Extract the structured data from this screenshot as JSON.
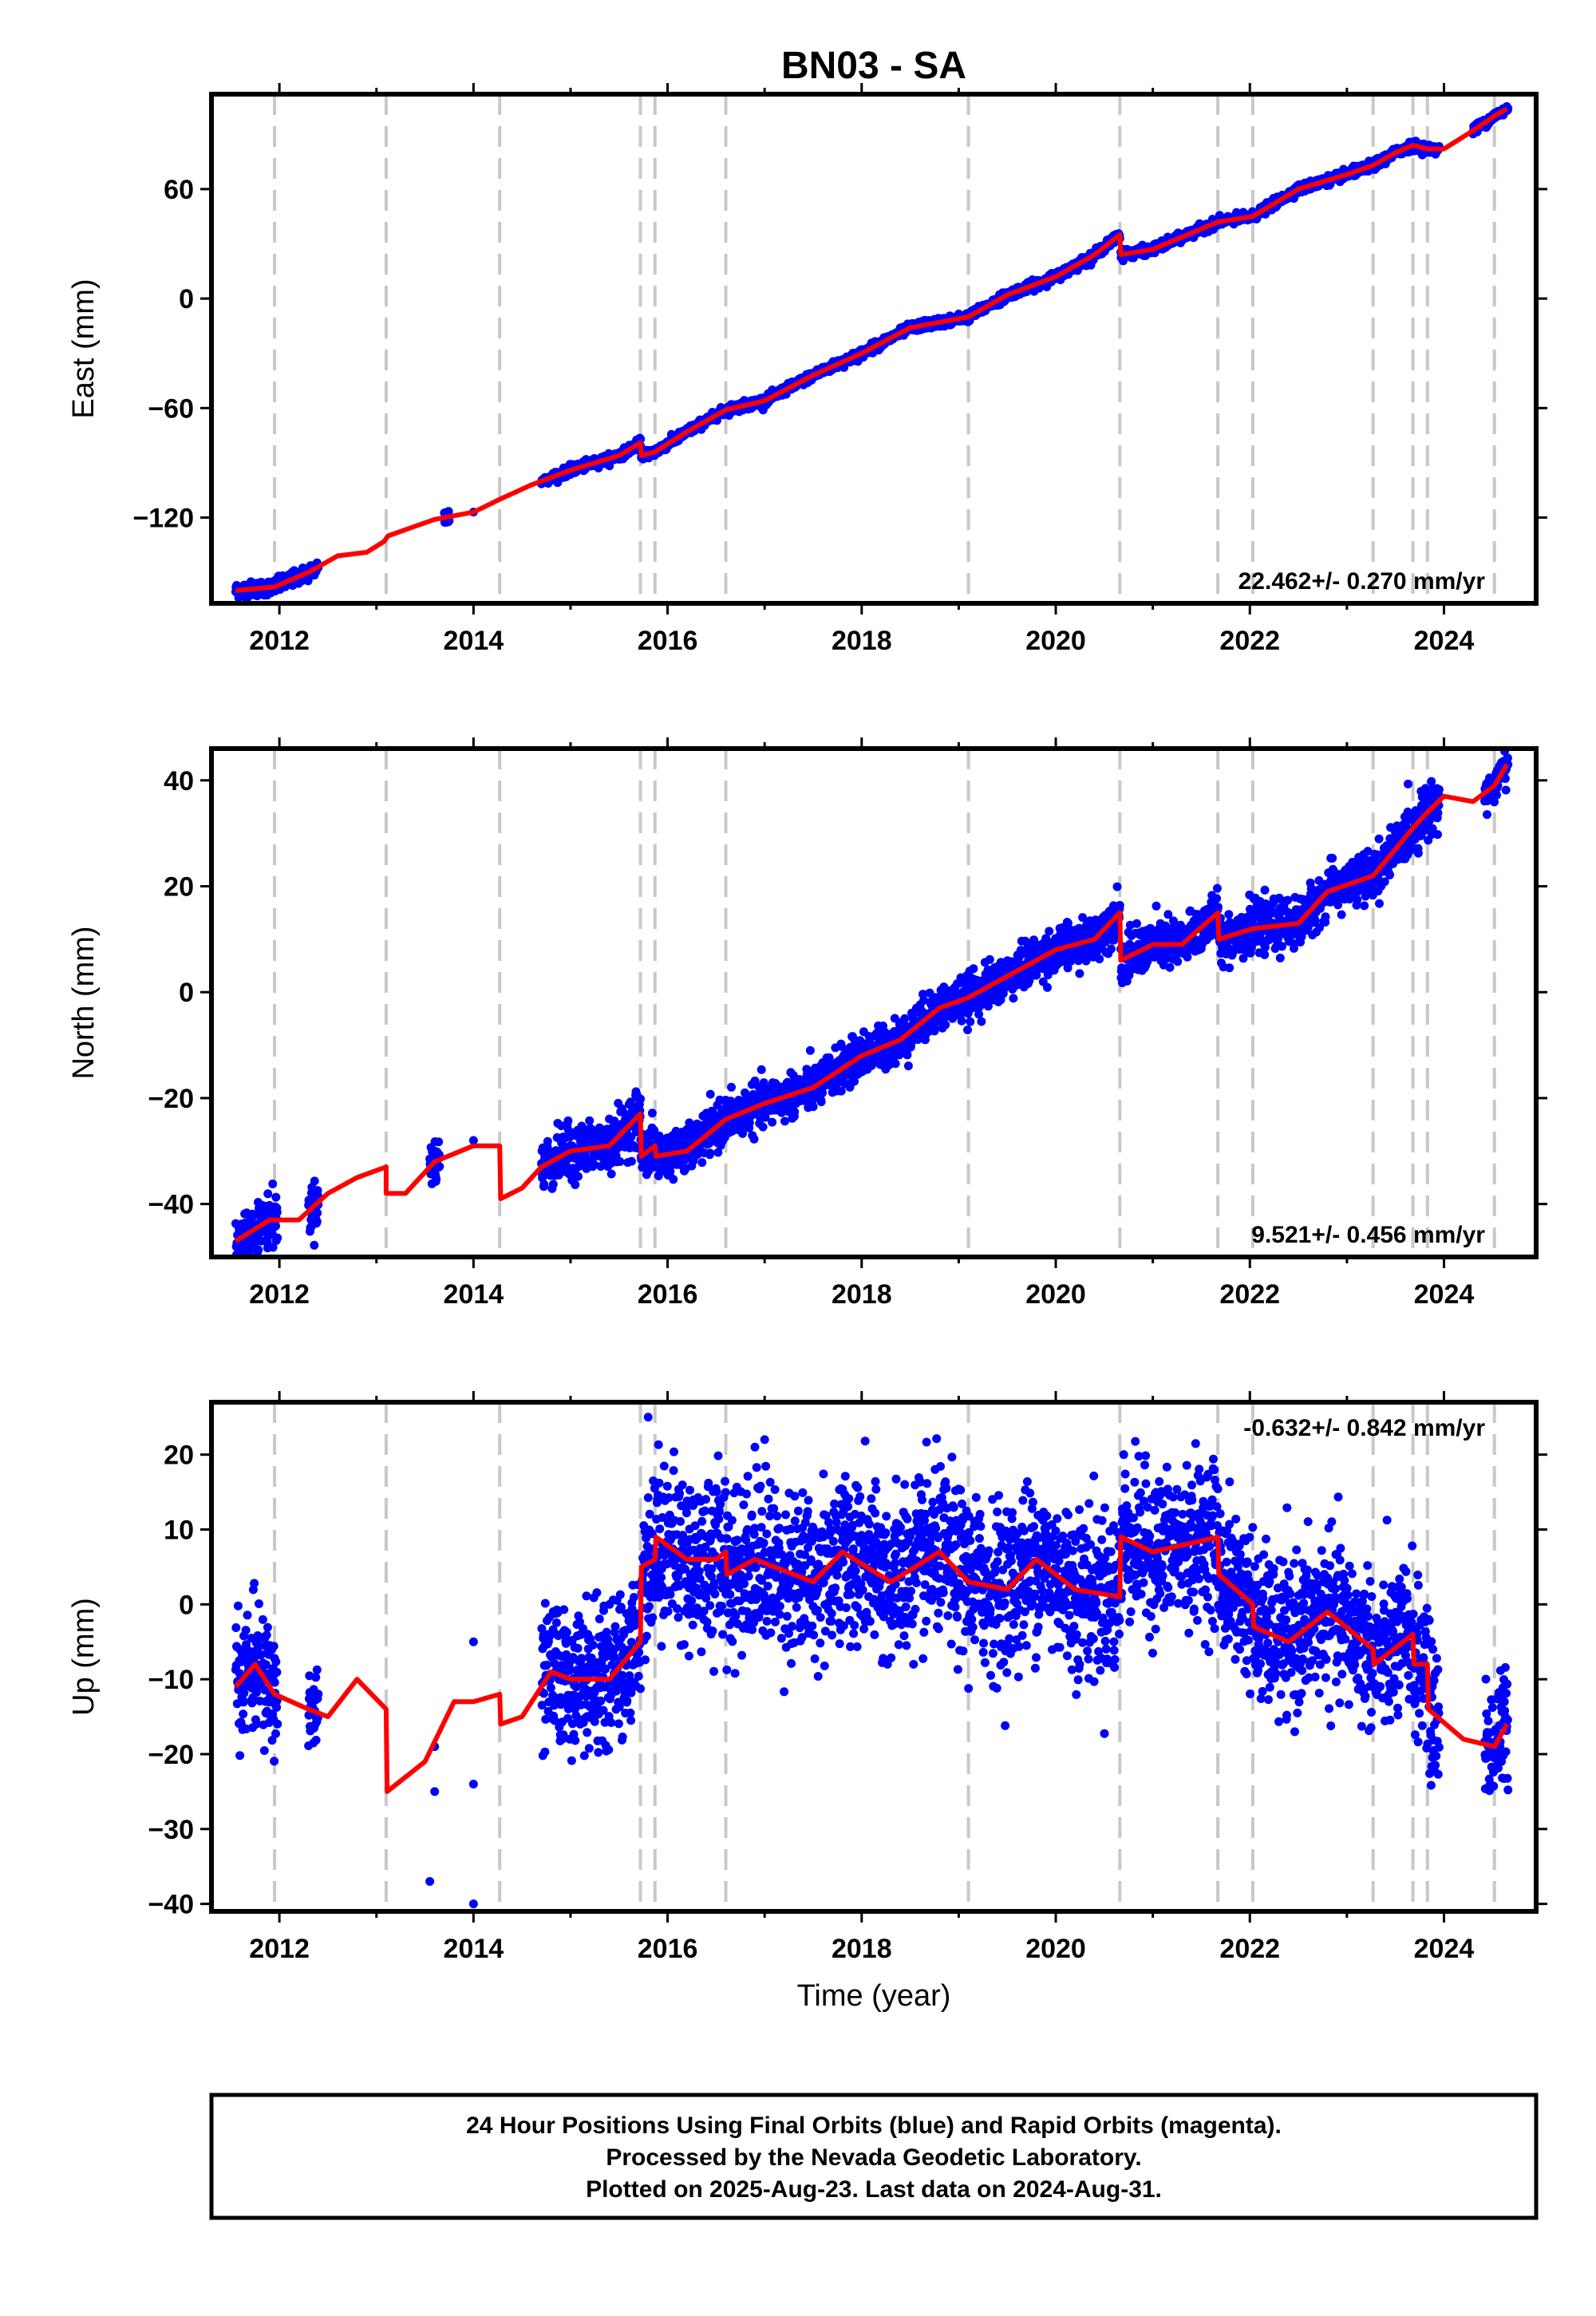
{
  "title": "BN03 - SA",
  "xlabel": "Time (year)",
  "footer": {
    "line1": "24 Hour Positions Using Final Orbits (blue) and Rapid Orbits (magenta).",
    "line2": "Processed by the Nevada Geodetic Laboratory.",
    "line3": "Plotted on 2025-Aug-23. Last data on 2024-Aug-31."
  },
  "colors": {
    "data": "#0000ff",
    "model": "#ff0000",
    "event": "#c8c8c8"
  },
  "chart_data": [
    {
      "type": "scatter",
      "name": "east",
      "ylabel": "East (mm)",
      "rate": "22.462+/- 0.270 mm/yr",
      "xlim": [
        2011.3,
        2024.95
      ],
      "ylim": [
        -167,
        112
      ],
      "yticks": [
        -120,
        -60,
        0,
        60
      ],
      "xticks": [
        2012,
        2014,
        2016,
        2018,
        2020,
        2022,
        2024
      ],
      "events": [
        2011.95,
        2013.1,
        2014.27,
        2015.72,
        2015.87,
        2016.6,
        2019.1,
        2020.66,
        2021.67,
        2022.03,
        2023.27,
        2023.68,
        2023.83,
        2024.52
      ],
      "model": [
        [
          2011.55,
          -160
        ],
        [
          2011.95,
          -158
        ],
        [
          2012.3,
          -150
        ],
        [
          2012.6,
          -141
        ],
        [
          2012.9,
          -139
        ],
        [
          2013.08,
          -133
        ],
        [
          2013.12,
          -130
        ],
        [
          2013.6,
          -121
        ],
        [
          2014.0,
          -117
        ],
        [
          2014.27,
          -110
        ],
        [
          2014.6,
          -102
        ],
        [
          2015.0,
          -94
        ],
        [
          2015.5,
          -86
        ],
        [
          2015.72,
          -79
        ],
        [
          2015.73,
          -86
        ],
        [
          2015.87,
          -84
        ],
        [
          2016.2,
          -73
        ],
        [
          2016.6,
          -61
        ],
        [
          2017.0,
          -56
        ],
        [
          2017.5,
          -42
        ],
        [
          2018.0,
          -30
        ],
        [
          2018.5,
          -16
        ],
        [
          2019.1,
          -10
        ],
        [
          2019.5,
          2
        ],
        [
          2020.0,
          12
        ],
        [
          2020.4,
          24
        ],
        [
          2020.66,
          35
        ],
        [
          2020.67,
          24
        ],
        [
          2021.0,
          27
        ],
        [
          2021.67,
          42
        ],
        [
          2022.03,
          45
        ],
        [
          2022.5,
          60
        ],
        [
          2023.0,
          68
        ],
        [
          2023.27,
          73
        ],
        [
          2023.5,
          80
        ],
        [
          2023.68,
          84
        ],
        [
          2023.83,
          82
        ],
        [
          2024.0,
          82
        ],
        [
          2024.3,
          92
        ],
        [
          2024.52,
          100
        ],
        [
          2024.65,
          104
        ]
      ],
      "segments": [
        [
          2011.55,
          2012.4,
          2.0
        ],
        [
          2013.7,
          2013.75,
          2.5
        ],
        [
          2014.7,
          2020.66,
          1.2
        ],
        [
          2020.67,
          2023.95,
          1.2
        ],
        [
          2024.3,
          2024.66,
          1.2
        ]
      ],
      "outliers": [
        [
          2014.0,
          -117
        ]
      ]
    },
    {
      "type": "scatter",
      "name": "north",
      "ylabel": "North (mm)",
      "rate": "9.521+/- 0.456 mm/yr",
      "xlim": [
        2011.3,
        2024.95
      ],
      "ylim": [
        -50,
        46
      ],
      "yticks": [
        -40,
        -20,
        0,
        20,
        40
      ],
      "xticks": [
        2012,
        2014,
        2016,
        2018,
        2020,
        2022,
        2024
      ],
      "events": [
        2011.95,
        2013.1,
        2014.27,
        2015.72,
        2015.87,
        2016.6,
        2019.1,
        2020.66,
        2021.67,
        2022.03,
        2023.27,
        2023.68,
        2023.83,
        2024.52
      ],
      "model": [
        [
          2011.55,
          -47
        ],
        [
          2011.9,
          -43
        ],
        [
          2012.2,
          -43
        ],
        [
          2012.5,
          -38
        ],
        [
          2012.8,
          -35
        ],
        [
          2013.1,
          -33
        ],
        [
          2013.1,
          -38
        ],
        [
          2013.3,
          -38
        ],
        [
          2013.6,
          -32
        ],
        [
          2014.0,
          -29
        ],
        [
          2014.27,
          -29
        ],
        [
          2014.28,
          -39
        ],
        [
          2014.5,
          -37
        ],
        [
          2014.7,
          -33
        ],
        [
          2015.0,
          -30
        ],
        [
          2015.4,
          -29
        ],
        [
          2015.72,
          -23
        ],
        [
          2015.73,
          -31
        ],
        [
          2015.87,
          -29
        ],
        [
          2015.88,
          -31
        ],
        [
          2016.2,
          -30
        ],
        [
          2016.6,
          -24
        ],
        [
          2017.0,
          -21
        ],
        [
          2017.5,
          -18
        ],
        [
          2018.0,
          -12
        ],
        [
          2018.4,
          -9
        ],
        [
          2018.8,
          -3
        ],
        [
          2019.1,
          -1
        ],
        [
          2019.5,
          3
        ],
        [
          2020.0,
          8
        ],
        [
          2020.4,
          10
        ],
        [
          2020.66,
          15
        ],
        [
          2020.67,
          6
        ],
        [
          2021.0,
          9
        ],
        [
          2021.3,
          9
        ],
        [
          2021.67,
          15
        ],
        [
          2021.68,
          10
        ],
        [
          2022.03,
          12
        ],
        [
          2022.5,
          13
        ],
        [
          2022.8,
          19
        ],
        [
          2023.27,
          22
        ],
        [
          2023.5,
          27
        ],
        [
          2023.68,
          31
        ],
        [
          2023.83,
          34
        ],
        [
          2024.0,
          37
        ],
        [
          2024.3,
          36
        ],
        [
          2024.52,
          39
        ],
        [
          2024.65,
          43
        ]
      ],
      "segments": [
        [
          2011.55,
          2011.98,
          2.4
        ],
        [
          2012.3,
          2012.4,
          2.2
        ],
        [
          2013.55,
          2013.65,
          2.2
        ],
        [
          2014.7,
          2015.87,
          2.4
        ],
        [
          2015.88,
          2020.66,
          2.0
        ],
        [
          2020.67,
          2023.95,
          2.2
        ],
        [
          2024.42,
          2024.66,
          1.6
        ]
      ],
      "outliers": [
        [
          2014.0,
          -28
        ],
        [
          2013.6,
          -30
        ]
      ]
    },
    {
      "type": "scatter",
      "name": "up",
      "ylabel": "Up (mm)",
      "rate": "-0.632+/- 0.842 mm/yr",
      "xlim": [
        2011.3,
        2024.95
      ],
      "ylim": [
        -41,
        27
      ],
      "yticks": [
        -40,
        -30,
        -20,
        -10,
        0,
        10,
        20
      ],
      "xticks": [
        2012,
        2014,
        2016,
        2018,
        2020,
        2022,
        2024
      ],
      "events": [
        2011.95,
        2013.1,
        2014.27,
        2015.72,
        2015.87,
        2016.6,
        2019.1,
        2020.66,
        2021.67,
        2022.03,
        2023.27,
        2023.68,
        2023.83,
        2024.52
      ],
      "model": [
        [
          2011.55,
          -11
        ],
        [
          2011.75,
          -8
        ],
        [
          2011.95,
          -12
        ],
        [
          2012.3,
          -14
        ],
        [
          2012.5,
          -15
        ],
        [
          2012.8,
          -10
        ],
        [
          2013.1,
          -14
        ],
        [
          2013.11,
          -25
        ],
        [
          2013.5,
          -21
        ],
        [
          2013.8,
          -13
        ],
        [
          2014.0,
          -13
        ],
        [
          2014.27,
          -12
        ],
        [
          2014.28,
          -16
        ],
        [
          2014.5,
          -15
        ],
        [
          2014.8,
          -9
        ],
        [
          2015.0,
          -10
        ],
        [
          2015.4,
          -10
        ],
        [
          2015.72,
          -5
        ],
        [
          2015.73,
          5
        ],
        [
          2015.87,
          6
        ],
        [
          2015.88,
          9
        ],
        [
          2016.2,
          6
        ],
        [
          2016.5,
          6
        ],
        [
          2016.6,
          7
        ],
        [
          2016.61,
          4
        ],
        [
          2016.9,
          6
        ],
        [
          2017.5,
          3
        ],
        [
          2017.8,
          7
        ],
        [
          2018.3,
          3
        ],
        [
          2018.8,
          7
        ],
        [
          2019.1,
          3
        ],
        [
          2019.5,
          2
        ],
        [
          2019.8,
          6
        ],
        [
          2020.2,
          2
        ],
        [
          2020.66,
          1
        ],
        [
          2020.67,
          9
        ],
        [
          2021.0,
          7
        ],
        [
          2021.67,
          9
        ],
        [
          2021.68,
          4
        ],
        [
          2022.03,
          0
        ],
        [
          2022.04,
          -3
        ],
        [
          2022.4,
          -5
        ],
        [
          2022.8,
          -1
        ],
        [
          2023.27,
          -6
        ],
        [
          2023.28,
          -8
        ],
        [
          2023.68,
          -4
        ],
        [
          2023.69,
          -8
        ],
        [
          2023.83,
          -8
        ],
        [
          2023.84,
          -14
        ],
        [
          2024.2,
          -18
        ],
        [
          2024.52,
          -19
        ],
        [
          2024.65,
          -16
        ]
      ],
      "segments": [
        [
          2011.55,
          2011.98,
          4.0
        ],
        [
          2012.3,
          2012.4,
          3.5
        ],
        [
          2014.7,
          2015.72,
          4.5
        ],
        [
          2015.73,
          2020.66,
          5.5
        ],
        [
          2020.67,
          2023.95,
          5.0
        ],
        [
          2024.42,
          2024.66,
          4.0
        ]
      ],
      "outliers": [
        [
          2013.55,
          -37
        ],
        [
          2014.0,
          -40
        ],
        [
          2013.6,
          -19
        ],
        [
          2013.6,
          -25
        ],
        [
          2014.0,
          -5
        ],
        [
          2014.0,
          -24
        ],
        [
          2015.8,
          25
        ],
        [
          2016.9,
          21
        ],
        [
          2017.0,
          22
        ],
        [
          2020.7,
          20
        ]
      ]
    }
  ]
}
